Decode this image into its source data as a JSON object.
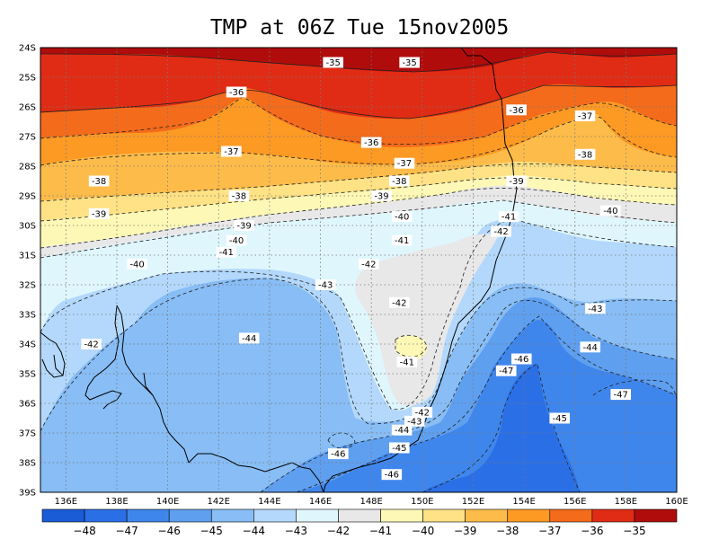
{
  "title": "TMP at 06Z Tue 15nov2005",
  "chart_data": {
    "type": "heatmap",
    "title": "TMP at 06Z Tue 15nov2005",
    "x_ticks": [
      "136E",
      "138E",
      "140E",
      "142E",
      "144E",
      "146E",
      "148E",
      "150E",
      "152E",
      "154E",
      "156E",
      "158E",
      "160E"
    ],
    "y_ticks": [
      "24S",
      "25S",
      "26S",
      "27S",
      "28S",
      "29S",
      "30S",
      "31S",
      "32S",
      "33S",
      "34S",
      "35S",
      "36S",
      "37S",
      "38S",
      "39S"
    ],
    "xlim": [
      135,
      160
    ],
    "ylim": [
      -39,
      -24
    ],
    "grid": true,
    "colorbar": {
      "levels": [
        -48,
        -47,
        -46,
        -45,
        -44,
        -43,
        -42,
        -41,
        -40,
        -39,
        -38,
        -37,
        -36,
        -35
      ],
      "colors": [
        "#1a5bd6",
        "#2b6fe6",
        "#3f86ec",
        "#5e9ff0",
        "#88bdf5",
        "#b3d8fb",
        "#dff6fd",
        "#e8e8e8",
        "#fdf8b6",
        "#fee285",
        "#fdbc4a",
        "#fc9a24",
        "#f46b1b",
        "#e02c14",
        "#b00c0c"
      ]
    },
    "contour_labels": [
      {
        "text": "-35",
        "lon": 146.5,
        "lat": -24.5
      },
      {
        "text": "-35",
        "lon": 149.5,
        "lat": -24.5
      },
      {
        "text": "-36",
        "lon": 142.7,
        "lat": -25.5
      },
      {
        "text": "-36",
        "lon": 153.7,
        "lat": -26.1
      },
      {
        "text": "-37",
        "lon": 156.4,
        "lat": -26.3
      },
      {
        "text": "-36",
        "lon": 148.0,
        "lat": -27.2
      },
      {
        "text": "-37",
        "lon": 142.5,
        "lat": -27.5
      },
      {
        "text": "-38",
        "lon": 156.4,
        "lat": -27.6
      },
      {
        "text": "-37",
        "lon": 149.3,
        "lat": -27.9
      },
      {
        "text": "-38",
        "lon": 137.3,
        "lat": -28.5
      },
      {
        "text": "-38",
        "lon": 149.1,
        "lat": -28.5
      },
      {
        "text": "-39",
        "lon": 153.7,
        "lat": -28.5
      },
      {
        "text": "-38",
        "lon": 142.8,
        "lat": -29.0
      },
      {
        "text": "-39",
        "lon": 148.4,
        "lat": -29.0
      },
      {
        "text": "-39",
        "lon": 137.3,
        "lat": -29.6
      },
      {
        "text": "-40",
        "lon": 149.2,
        "lat": -29.7
      },
      {
        "text": "-41",
        "lon": 153.4,
        "lat": -29.7
      },
      {
        "text": "-40",
        "lon": 157.4,
        "lat": -29.5
      },
      {
        "text": "-39",
        "lon": 143.0,
        "lat": -30.0
      },
      {
        "text": "-42",
        "lon": 153.1,
        "lat": -30.2
      },
      {
        "text": "-40",
        "lon": 142.7,
        "lat": -30.5
      },
      {
        "text": "-41",
        "lon": 149.2,
        "lat": -30.5
      },
      {
        "text": "-41",
        "lon": 142.3,
        "lat": -30.9
      },
      {
        "text": "-40",
        "lon": 138.8,
        "lat": -31.3
      },
      {
        "text": "-42",
        "lon": 147.9,
        "lat": -31.3
      },
      {
        "text": "-43",
        "lon": 146.2,
        "lat": -32.0
      },
      {
        "text": "-42",
        "lon": 149.1,
        "lat": -32.6
      },
      {
        "text": "-43",
        "lon": 156.8,
        "lat": -32.8
      },
      {
        "text": "-42",
        "lon": 137.0,
        "lat": -34.0
      },
      {
        "text": "-44",
        "lon": 143.2,
        "lat": -33.8
      },
      {
        "text": "-44",
        "lon": 156.6,
        "lat": -34.1
      },
      {
        "text": "-41",
        "lon": 149.4,
        "lat": -34.6
      },
      {
        "text": "-46",
        "lon": 153.9,
        "lat": -34.5
      },
      {
        "text": "-47",
        "lon": 153.3,
        "lat": -34.9
      },
      {
        "text": "-47",
        "lon": 157.8,
        "lat": -35.7
      },
      {
        "text": "-42",
        "lon": 150.0,
        "lat": -36.3
      },
      {
        "text": "-45",
        "lon": 155.4,
        "lat": -36.5
      },
      {
        "text": "-43",
        "lon": 149.7,
        "lat": -36.6
      },
      {
        "text": "-44",
        "lon": 149.2,
        "lat": -36.9
      },
      {
        "text": "-45",
        "lon": 149.1,
        "lat": -37.5
      },
      {
        "text": "-46",
        "lon": 146.7,
        "lat": -37.7
      },
      {
        "text": "-46",
        "lon": 148.8,
        "lat": -38.4
      }
    ]
  }
}
